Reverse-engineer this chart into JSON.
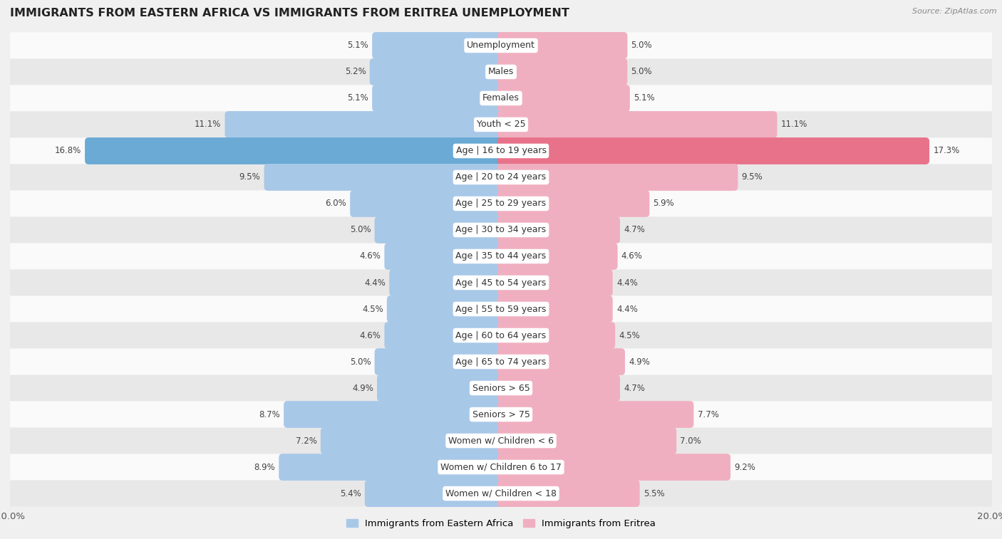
{
  "title": "IMMIGRANTS FROM EASTERN AFRICA VS IMMIGRANTS FROM ERITREA UNEMPLOYMENT",
  "source": "Source: ZipAtlas.com",
  "categories": [
    "Unemployment",
    "Males",
    "Females",
    "Youth < 25",
    "Age | 16 to 19 years",
    "Age | 20 to 24 years",
    "Age | 25 to 29 years",
    "Age | 30 to 34 years",
    "Age | 35 to 44 years",
    "Age | 45 to 54 years",
    "Age | 55 to 59 years",
    "Age | 60 to 64 years",
    "Age | 65 to 74 years",
    "Seniors > 65",
    "Seniors > 75",
    "Women w/ Children < 6",
    "Women w/ Children 6 to 17",
    "Women w/ Children < 18"
  ],
  "left_values": [
    5.1,
    5.2,
    5.1,
    11.1,
    16.8,
    9.5,
    6.0,
    5.0,
    4.6,
    4.4,
    4.5,
    4.6,
    5.0,
    4.9,
    8.7,
    7.2,
    8.9,
    5.4
  ],
  "right_values": [
    5.0,
    5.0,
    5.1,
    11.1,
    17.3,
    9.5,
    5.9,
    4.7,
    4.6,
    4.4,
    4.4,
    4.5,
    4.9,
    4.7,
    7.7,
    7.0,
    9.2,
    5.5
  ],
  "left_color": "#a8c8e8",
  "right_color": "#f0afc0",
  "highlight_left_color": "#6aaad4",
  "highlight_right_color": "#e8728a",
  "background_color": "#f0f0f0",
  "row_color_light": "#fafafa",
  "row_color_dark": "#e8e8e8",
  "xlim": 20.0,
  "label_box_color": "#ffffff",
  "label_text_color": "#333333",
  "value_text_color": "#444444",
  "legend_left": "Immigrants from Eastern Africa",
  "legend_right": "Immigrants from Eritrea",
  "bar_height": 0.72,
  "font_size_label": 9.0,
  "font_size_value": 8.5,
  "font_size_title": 11.5
}
